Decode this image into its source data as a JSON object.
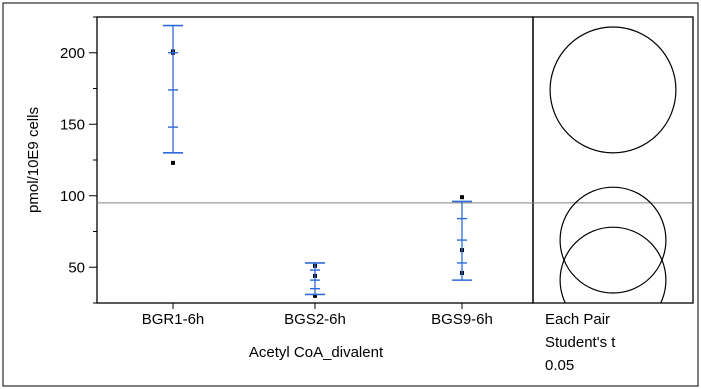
{
  "chart_data": {
    "type": "scatter",
    "ylabel": "pmol/10E9 cells",
    "xlabel": "Acetyl CoA_divalent",
    "categories": [
      "BGR1-6h",
      "BGS2-6h",
      "BGS9-6h"
    ],
    "ylim": [
      25,
      225
    ],
    "yticks": [
      50,
      100,
      150,
      200
    ],
    "grand_mean": 95,
    "points": [
      {
        "category": "BGR1-6h",
        "values": [
          123,
          200,
          201
        ]
      },
      {
        "category": "BGS2-6h",
        "values": [
          30,
          44,
          51
        ]
      },
      {
        "category": "BGS9-6h",
        "values": [
          46,
          62,
          99
        ]
      }
    ],
    "error_bars": [
      {
        "category": "BGR1-6h",
        "mean": 174,
        "se_lower": 148,
        "se_upper": 200,
        "ci_lower": 130,
        "ci_upper": 219
      },
      {
        "category": "BGS2-6h",
        "mean": 41,
        "se_lower": 35,
        "se_upper": 48,
        "ci_lower": 31,
        "ci_upper": 53
      },
      {
        "category": "BGS9-6h",
        "mean": 69,
        "se_lower": 53,
        "se_upper": 84,
        "ci_lower": 41,
        "ci_upper": 96
      }
    ],
    "comparison": {
      "label_lines": [
        "Each Pair",
        "Student's t",
        "0.05"
      ],
      "circles": [
        {
          "category": "BGR1-6h",
          "center": 174,
          "radius": 44
        },
        {
          "category": "BGS9-6h",
          "center": 69,
          "radius": 37
        },
        {
          "category": "BGS2-6h",
          "center": 41,
          "radius": 37
        }
      ]
    },
    "colors": {
      "error_bar": "#2f6bd8",
      "points": "#000000",
      "frame": "#000000",
      "reference_line": "#808080"
    }
  }
}
